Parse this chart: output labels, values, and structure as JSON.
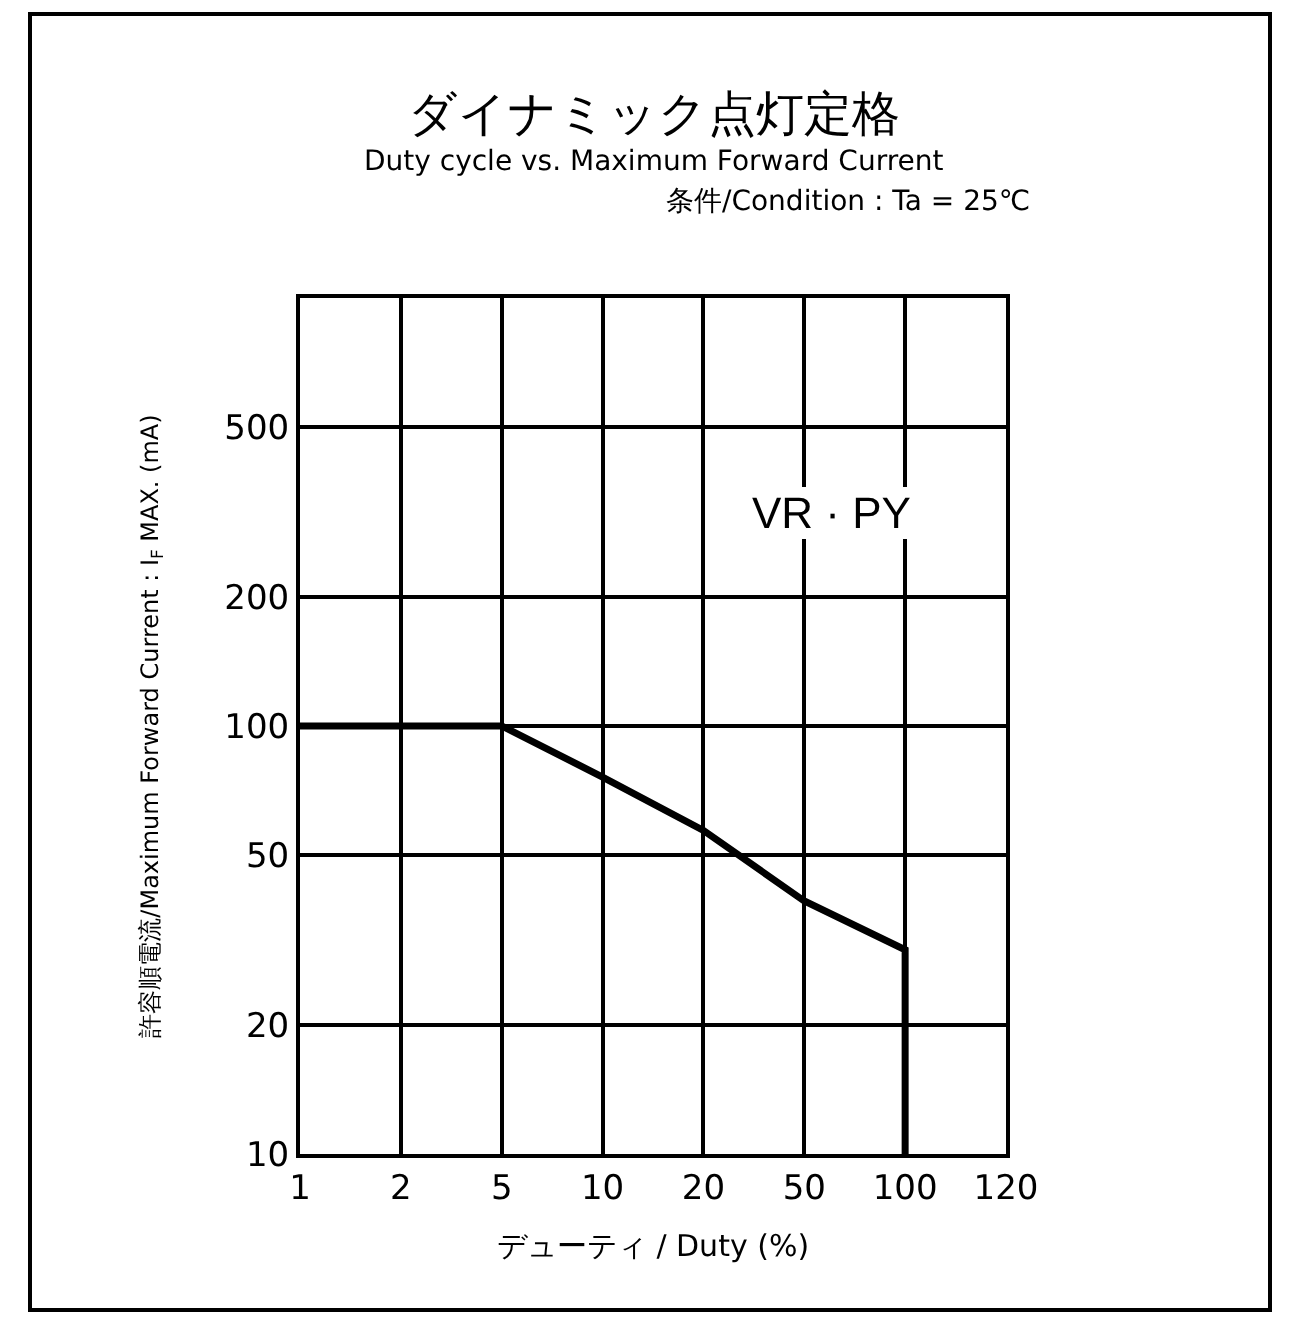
{
  "chart_data": {
    "type": "line",
    "title": "ダイナミック点灯定格",
    "subtitle": "Duty cycle vs. Maximum Forward Current",
    "annotations": [
      "条件/Condition : Ta = 25℃"
    ],
    "xlabel": "デューティ / Duty (%)",
    "ylabel": "許容順電流/Maximum Forward Current : I$_{F}$ MAX. (mA)",
    "categories": [
      "1",
      "2",
      "5",
      "10",
      "20",
      "50",
      "100",
      "120"
    ],
    "series": [
      {
        "name": "VR · PY",
        "color": "#000000",
        "x": [
          "1",
          "5",
          "10",
          "20",
          "50",
          "100",
          "100"
        ],
        "values": [
          100,
          100,
          76,
          57,
          39,
          30,
          10
        ]
      }
    ],
    "log": "y",
    "ylim": [
      10,
      1000
    ],
    "yticks": [
      10,
      20,
      50,
      100,
      200,
      500
    ],
    "grid": true,
    "legend": false,
    "marker": "none",
    "line_style": "solid"
  }
}
